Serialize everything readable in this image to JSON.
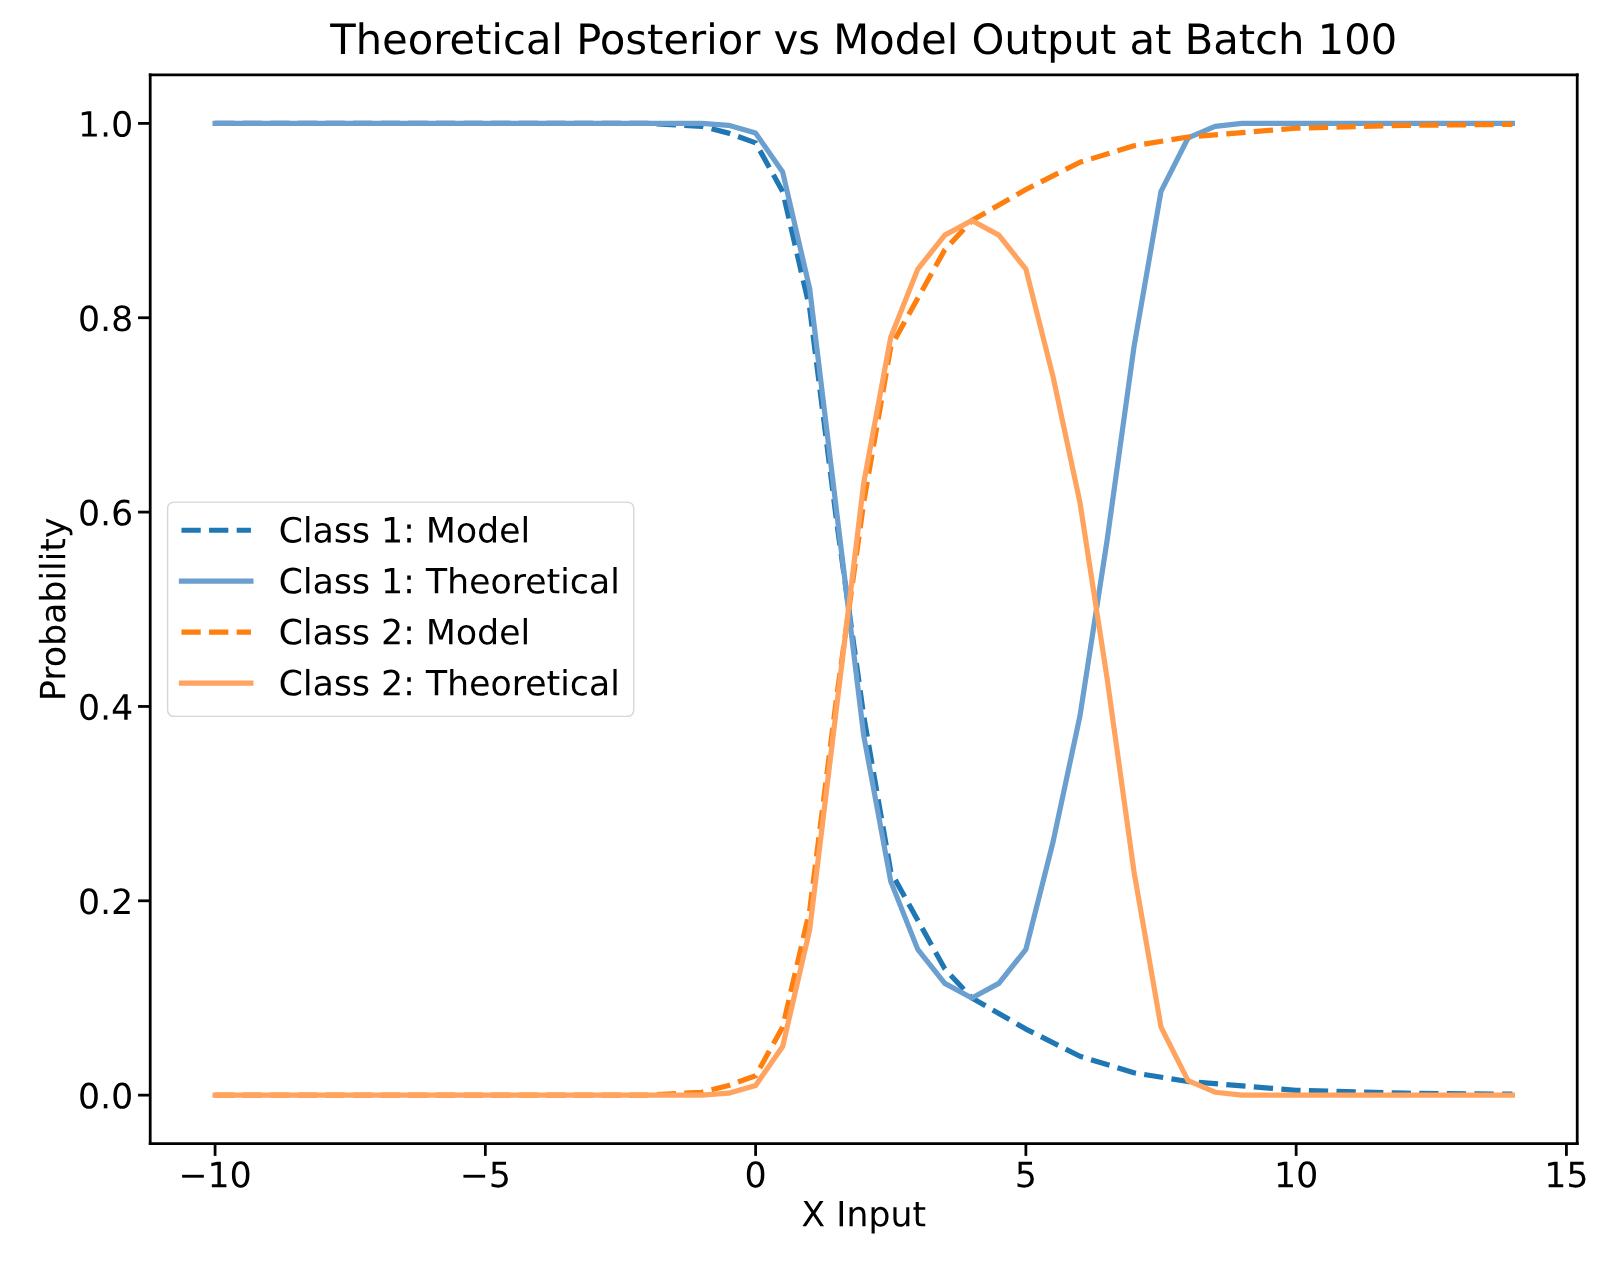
{
  "chart_data": {
    "type": "line",
    "title": "Theoretical Posterior vs Model Output at Batch 100",
    "xlabel": "X Input",
    "ylabel": "Probability",
    "series": [
      {
        "name": "Class 1: Model",
        "color": "#1f77b4",
        "line_style": "dashed",
        "x": [
          -10,
          -5,
          -2,
          -1,
          -0.5,
          0,
          0.5,
          1,
          1.5,
          2,
          2.5,
          3,
          3.5,
          4,
          5,
          6,
          7,
          8,
          10,
          12,
          14
        ],
        "values": [
          1,
          1,
          1,
          0.997,
          0.99,
          0.98,
          0.93,
          0.81,
          0.59,
          0.39,
          0.23,
          0.18,
          0.13,
          0.1,
          0.068,
          0.04,
          0.023,
          0.014,
          0.005,
          0.002,
          0.001
        ]
      },
      {
        "name": "Class 1: Theoretical",
        "color": "#6a9fcf",
        "line_style": "solid",
        "x": [
          -10,
          -5,
          -1,
          -0.5,
          0,
          0.5,
          1,
          1.5,
          2,
          2.5,
          3,
          3.5,
          4,
          4.5,
          5,
          5.5,
          6,
          6.5,
          7,
          7.5,
          8,
          8.5,
          9,
          10,
          14
        ],
        "values": [
          1,
          1,
          1,
          0.998,
          0.99,
          0.95,
          0.83,
          0.6,
          0.37,
          0.22,
          0.15,
          0.115,
          0.1,
          0.115,
          0.15,
          0.26,
          0.39,
          0.57,
          0.77,
          0.93,
          0.985,
          0.997,
          1,
          1,
          1
        ]
      },
      {
        "name": "Class 2: Model",
        "color": "#ff7f0e",
        "line_style": "dashed",
        "x": [
          -10,
          -5,
          -2,
          -1,
          -0.5,
          0,
          0.5,
          1,
          1.5,
          2,
          2.5,
          3,
          3.5,
          4,
          5,
          6,
          7,
          8,
          10,
          12,
          14
        ],
        "values": [
          0,
          0,
          0,
          0.003,
          0.01,
          0.02,
          0.07,
          0.19,
          0.41,
          0.61,
          0.77,
          0.82,
          0.87,
          0.9,
          0.932,
          0.96,
          0.977,
          0.986,
          0.995,
          0.998,
          0.999
        ]
      },
      {
        "name": "Class 2: Theoretical",
        "color": "#ffa35f",
        "line_style": "solid",
        "x": [
          -10,
          -5,
          -1,
          -0.5,
          0,
          0.5,
          1,
          1.5,
          2,
          2.5,
          3,
          3.5,
          4,
          4.5,
          5,
          5.5,
          6,
          6.5,
          7,
          7.5,
          8,
          8.5,
          9,
          10,
          14
        ],
        "values": [
          0,
          0,
          0,
          0.002,
          0.01,
          0.05,
          0.17,
          0.4,
          0.63,
          0.78,
          0.85,
          0.885,
          0.9,
          0.885,
          0.85,
          0.74,
          0.61,
          0.43,
          0.23,
          0.07,
          0.015,
          0.003,
          0,
          0,
          0
        ]
      }
    ],
    "xlim": [
      -11.2,
      15.2
    ],
    "ylim": [
      -0.05,
      1.05
    ],
    "xticks": [
      {
        "value": -10,
        "label": "−10"
      },
      {
        "value": -5,
        "label": "−5"
      },
      0,
      5,
      10,
      15
    ],
    "yticks": [
      {
        "value": 0,
        "label": "0.0"
      },
      0.2,
      0.4,
      0.6,
      0.8,
      {
        "value": 1,
        "label": "1.0"
      }
    ],
    "grid": false,
    "legend": "left",
    "marker": "none"
  }
}
